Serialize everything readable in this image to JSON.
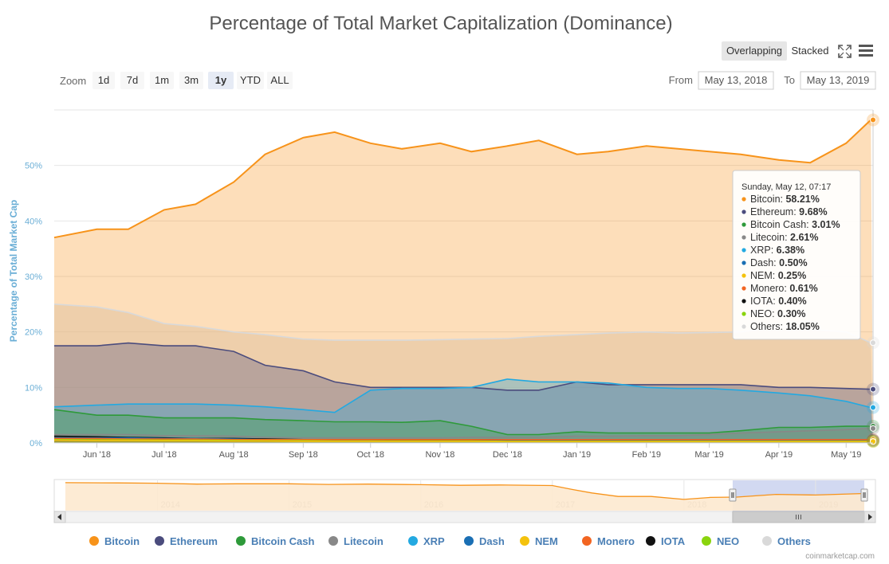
{
  "title": "Percentage of Total Market Capitalization (Dominance)",
  "view_modes": [
    {
      "label": "Overlapping",
      "selected": true
    },
    {
      "label": "Stacked",
      "selected": false
    }
  ],
  "zoom": {
    "label": "Zoom",
    "buttons": [
      {
        "label": "1d",
        "selected": false
      },
      {
        "label": "7d",
        "selected": false
      },
      {
        "label": "1m",
        "selected": false
      },
      {
        "label": "3m",
        "selected": false
      },
      {
        "label": "1y",
        "selected": true
      },
      {
        "label": "YTD",
        "selected": false
      },
      {
        "label": "ALL",
        "selected": false
      }
    ]
  },
  "range": {
    "from_label": "From",
    "from": "May 13, 2018",
    "to_label": "To",
    "to": "May 13, 2019"
  },
  "credits": "coinmarketcap.com",
  "colors": {
    "Bitcoin": "#f7931a",
    "Ethereum": "#4b4c7d",
    "Bitcoin Cash": "#2e9a3a",
    "Litecoin": "#888888",
    "XRP": "#23a9e1",
    "Dash": "#1a6fb4",
    "NEM": "#f4c20d",
    "Monero": "#f26522",
    "IOTA": "#111111",
    "NEO": "#8ad40e",
    "Others": "#d9d9d9"
  },
  "chart_data": {
    "type": "area",
    "ylabel": "Percentage of Total Market Cap",
    "ylim": [
      0,
      60
    ],
    "yticks": [
      0,
      10,
      20,
      30,
      40,
      50
    ],
    "ytick_labels": [
      "0%",
      "10%",
      "20%",
      "30%",
      "40%",
      "50%"
    ],
    "xlim": [
      "2018-05-13",
      "2019-05-13"
    ],
    "xticks": [
      {
        "date": "2018-06-01",
        "label": "Jun '18"
      },
      {
        "date": "2018-07-01",
        "label": "Jul '18"
      },
      {
        "date": "2018-08-01",
        "label": "Aug '18"
      },
      {
        "date": "2018-09-01",
        "label": "Sep '18"
      },
      {
        "date": "2018-10-01",
        "label": "Oct '18"
      },
      {
        "date": "2018-11-01",
        "label": "Nov '18"
      },
      {
        "date": "2018-12-01",
        "label": "Dec '18"
      },
      {
        "date": "2019-01-01",
        "label": "Jan '19"
      },
      {
        "date": "2019-02-01",
        "label": "Feb '19"
      },
      {
        "date": "2019-03-01",
        "label": "Mar '19"
      },
      {
        "date": "2019-04-01",
        "label": "Apr '19"
      },
      {
        "date": "2019-05-01",
        "label": "May '19"
      }
    ],
    "x": [
      "2018-05-13",
      "2018-06-01",
      "2018-06-15",
      "2018-07-01",
      "2018-07-15",
      "2018-08-01",
      "2018-08-15",
      "2018-09-01",
      "2018-09-15",
      "2018-10-01",
      "2018-10-15",
      "2018-11-01",
      "2018-11-15",
      "2018-12-01",
      "2018-12-15",
      "2019-01-01",
      "2019-01-15",
      "2019-02-01",
      "2019-02-15",
      "2019-03-01",
      "2019-03-15",
      "2019-04-01",
      "2019-04-15",
      "2019-05-01",
      "2019-05-12"
    ],
    "series": [
      {
        "name": "Others",
        "values": [
          25,
          24.5,
          23.5,
          21.5,
          21,
          20,
          19.5,
          18.7,
          18.5,
          18.5,
          18.5,
          18.6,
          18.7,
          18.8,
          19.2,
          19.5,
          19.8,
          20,
          19.8,
          19.9,
          20,
          21,
          20.5,
          20,
          18.05
        ]
      },
      {
        "name": "Bitcoin",
        "values": [
          37,
          38.5,
          38.5,
          42,
          43,
          47,
          52,
          55,
          56,
          54,
          53,
          54,
          52.5,
          53.5,
          54.5,
          52,
          52.5,
          53.5,
          53,
          52.5,
          52,
          51,
          50.5,
          54,
          58.21
        ]
      },
      {
        "name": "Ethereum",
        "values": [
          17.5,
          17.5,
          18,
          17.5,
          17.5,
          16.5,
          14,
          13,
          11,
          10,
          10,
          10,
          10,
          9.5,
          9.5,
          11,
          10.5,
          10.5,
          10.5,
          10.5,
          10.5,
          10,
          10,
          9.8,
          9.68
        ]
      },
      {
        "name": "XRP",
        "values": [
          6.5,
          6.8,
          7,
          7,
          7,
          6.8,
          6.5,
          6,
          5.5,
          9.5,
          9.8,
          9.8,
          10,
          11.5,
          11,
          11,
          10.8,
          10,
          9.8,
          9.8,
          9.5,
          9,
          8.5,
          7.5,
          6.38
        ]
      },
      {
        "name": "Bitcoin Cash",
        "values": [
          6,
          5,
          5,
          4.5,
          4.5,
          4.5,
          4.2,
          4,
          3.8,
          3.8,
          3.7,
          4,
          3,
          1.5,
          1.5,
          2,
          1.8,
          1.8,
          1.8,
          1.8,
          2.2,
          2.8,
          2.8,
          3,
          3.01
        ]
      },
      {
        "name": "Litecoin",
        "values": [
          1.5,
          1.5,
          1.5,
          1.3,
          1.3,
          1.2,
          1,
          0.9,
          0.9,
          0.9,
          0.9,
          0.9,
          1,
          1,
          1,
          1.2,
          1.2,
          1.3,
          1.3,
          1.5,
          1.8,
          2,
          2.2,
          2.4,
          2.61
        ]
      },
      {
        "name": "IOTA",
        "values": [
          1.2,
          1.1,
          1,
          0.9,
          0.8,
          0.8,
          0.7,
          0.6,
          0.6,
          0.6,
          0.5,
          0.5,
          0.5,
          0.45,
          0.45,
          0.45,
          0.4,
          0.4,
          0.4,
          0.4,
          0.4,
          0.4,
          0.4,
          0.4,
          0.4
        ]
      },
      {
        "name": "Dash",
        "values": [
          0.9,
          0.9,
          0.9,
          0.8,
          0.8,
          0.7,
          0.6,
          0.6,
          0.6,
          0.6,
          0.6,
          0.6,
          0.6,
          0.55,
          0.55,
          0.55,
          0.55,
          0.55,
          0.5,
          0.5,
          0.5,
          0.5,
          0.5,
          0.5,
          0.5
        ]
      },
      {
        "name": "Monero",
        "values": [
          0.8,
          0.8,
          0.7,
          0.7,
          0.7,
          0.6,
          0.6,
          0.6,
          0.6,
          0.6,
          0.6,
          0.6,
          0.6,
          0.6,
          0.6,
          0.6,
          0.6,
          0.6,
          0.6,
          0.6,
          0.6,
          0.6,
          0.6,
          0.6,
          0.61
        ]
      },
      {
        "name": "NEO",
        "values": [
          0.6,
          0.55,
          0.55,
          0.5,
          0.5,
          0.45,
          0.4,
          0.4,
          0.35,
          0.35,
          0.35,
          0.35,
          0.35,
          0.3,
          0.3,
          0.3,
          0.3,
          0.3,
          0.3,
          0.3,
          0.3,
          0.3,
          0.3,
          0.3,
          0.3
        ]
      },
      {
        "name": "NEM",
        "values": [
          0.5,
          0.45,
          0.45,
          0.4,
          0.4,
          0.35,
          0.35,
          0.3,
          0.3,
          0.3,
          0.3,
          0.3,
          0.3,
          0.25,
          0.25,
          0.25,
          0.25,
          0.25,
          0.25,
          0.25,
          0.25,
          0.25,
          0.25,
          0.25,
          0.25
        ]
      }
    ],
    "legend": [
      "Bitcoin",
      "Ethereum",
      "Bitcoin Cash",
      "Litecoin",
      "XRP",
      "Dash",
      "NEM",
      "Monero",
      "IOTA",
      "NEO",
      "Others"
    ],
    "legend_position": "bottom",
    "tooltip": {
      "header": "Sunday, May 12, 07:17",
      "items": [
        {
          "name": "Bitcoin",
          "value": "58.21%"
        },
        {
          "name": "Ethereum",
          "value": "9.68%"
        },
        {
          "name": "Bitcoin Cash",
          "value": "3.01%"
        },
        {
          "name": "Litecoin",
          "value": "2.61%"
        },
        {
          "name": "XRP",
          "value": "6.38%"
        },
        {
          "name": "Dash",
          "value": "0.50%"
        },
        {
          "name": "NEM",
          "value": "0.25%"
        },
        {
          "name": "Monero",
          "value": "0.61%"
        },
        {
          "name": "IOTA",
          "value": "0.40%"
        },
        {
          "name": "NEO",
          "value": "0.30%"
        },
        {
          "name": "Others",
          "value": "18.05%"
        }
      ]
    },
    "navigator": {
      "labels": [
        "2014",
        "2015",
        "2016",
        "2017",
        "2018",
        "2019"
      ],
      "x": [
        2013.3,
        2013.7,
        2014.0,
        2014.3,
        2014.6,
        2015.0,
        2015.3,
        2015.6,
        2016.0,
        2016.3,
        2016.6,
        2017.0,
        2017.15,
        2017.3,
        2017.5,
        2017.75,
        2018.0,
        2018.2,
        2018.4,
        2018.7,
        2019.0,
        2019.37
      ],
      "values": [
        95,
        94,
        93,
        90,
        91,
        91,
        89,
        90,
        88,
        86,
        87,
        85,
        72,
        60,
        48,
        48,
        38,
        45,
        46,
        55,
        53,
        58
      ],
      "ylim": [
        0,
        100
      ],
      "xlim": [
        2013.3,
        2019.37
      ],
      "selection": [
        2018.37,
        2019.37
      ]
    }
  }
}
